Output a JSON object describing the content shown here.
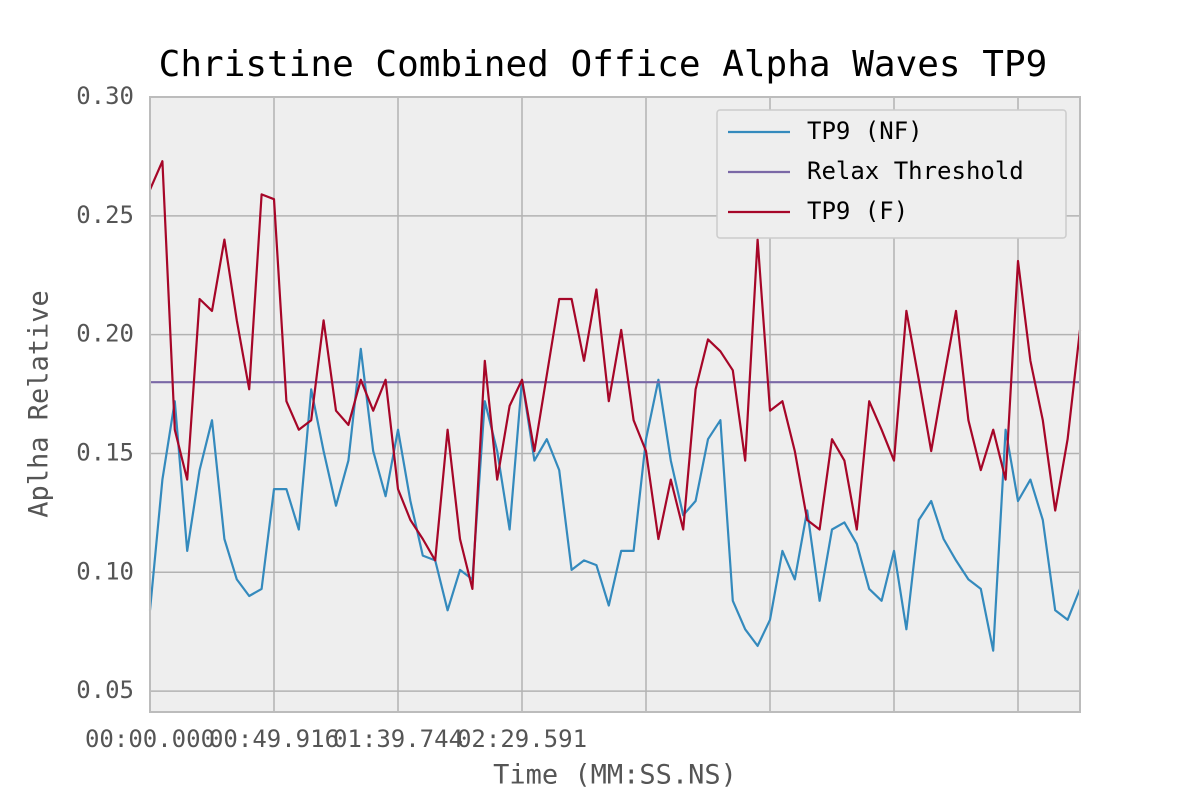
{
  "chart_data": {
    "type": "line",
    "title": "Christine Combined Office Alpha Waves TP9",
    "xlabel": "Time (MM:SS.NS)",
    "ylabel": "Aplha Relative",
    "x": [
      0,
      10,
      20,
      30,
      40,
      50,
      60,
      70,
      80,
      90,
      100,
      110,
      120,
      130,
      140,
      150,
      160,
      170,
      180,
      190,
      200,
      210,
      220,
      230,
      240,
      250,
      260,
      270,
      280,
      290,
      300,
      310,
      320,
      330,
      340,
      350,
      360,
      370,
      380,
      390,
      400,
      410,
      420,
      430,
      440,
      450,
      460,
      470,
      480,
      490,
      500,
      510,
      520,
      530,
      540,
      550,
      560,
      570,
      580,
      590,
      600,
      610,
      620,
      630,
      640,
      650,
      660,
      670,
      680,
      690,
      700,
      710,
      720,
      730,
      740,
      750
    ],
    "series": [
      {
        "name": "TP9 (NF)",
        "color": "#348abd",
        "values": [
          0.084,
          0.139,
          0.172,
          0.109,
          0.143,
          0.164,
          0.114,
          0.097,
          0.09,
          0.093,
          0.135,
          0.135,
          0.118,
          0.177,
          0.151,
          0.128,
          0.147,
          0.194,
          0.151,
          0.132,
          0.16,
          0.13,
          0.107,
          0.105,
          0.084,
          0.101,
          0.097,
          0.172,
          0.151,
          0.118,
          0.181,
          0.147,
          0.156,
          0.143,
          0.101,
          0.105,
          0.103,
          0.086,
          0.109,
          0.109,
          0.156,
          0.181,
          0.147,
          0.124,
          0.13,
          0.156,
          0.164,
          0.088,
          0.076,
          0.069,
          0.08,
          0.109,
          0.097,
          0.126,
          0.088,
          0.118,
          0.121,
          0.112,
          0.093,
          0.088,
          0.109,
          0.076,
          0.122,
          0.13,
          0.114,
          0.105,
          0.097,
          0.093,
          0.067,
          0.16,
          0.13,
          0.139,
          0.122,
          0.084,
          0.08,
          0.093
        ]
      },
      {
        "name": "Relax Threshold",
        "color": "#7a68a6",
        "x": [
          0,
          750
        ],
        "values": [
          0.18,
          0.18
        ]
      },
      {
        "name": "TP9 (F)",
        "color": "#a60628",
        "values": [
          0.261,
          0.273,
          0.16,
          0.139,
          0.215,
          0.21,
          0.24,
          0.206,
          0.177,
          0.259,
          0.257,
          0.172,
          0.16,
          0.164,
          0.206,
          0.168,
          0.162,
          0.181,
          0.168,
          0.181,
          0.135,
          0.122,
          0.114,
          0.105,
          0.16,
          0.114,
          0.093,
          0.189,
          0.139,
          0.17,
          0.181,
          0.151,
          0.183,
          0.215,
          0.215,
          0.189,
          0.219,
          0.172,
          0.202,
          0.164,
          0.151,
          0.114,
          0.139,
          0.118,
          0.177,
          0.198,
          0.193,
          0.185,
          0.147,
          0.24,
          0.168,
          0.172,
          0.151,
          0.122,
          0.118,
          0.156,
          0.147,
          0.118,
          0.172,
          0.16,
          0.147,
          0.21,
          0.181,
          0.151,
          0.181,
          0.21,
          0.164,
          0.143,
          0.16,
          0.139,
          0.231,
          0.189,
          0.164,
          0.126,
          0.156,
          0.202
        ]
      }
    ],
    "xlim": [
      0,
      750
    ],
    "ylim": [
      0.0412,
      0.3
    ],
    "xticks": [
      {
        "value": 0,
        "label": "00:00.000"
      },
      {
        "value": 100,
        "label": "00:49.916"
      },
      {
        "value": 200,
        "label": "01:39.744"
      },
      {
        "value": 300,
        "label": "02:29.591"
      },
      {
        "value": 400,
        "label": null
      },
      {
        "value": 500,
        "label": null
      },
      {
        "value": 600,
        "label": null
      },
      {
        "value": 700,
        "label": null
      }
    ],
    "yticks": [
      {
        "value": 0.05,
        "label": "0.05"
      },
      {
        "value": 0.1,
        "label": "0.10"
      },
      {
        "value": 0.15,
        "label": "0.15"
      },
      {
        "value": 0.2,
        "label": "0.20"
      },
      {
        "value": 0.25,
        "label": "0.25"
      },
      {
        "value": 0.3,
        "label": "0.30"
      }
    ],
    "grid": true,
    "legend": "upper right"
  }
}
